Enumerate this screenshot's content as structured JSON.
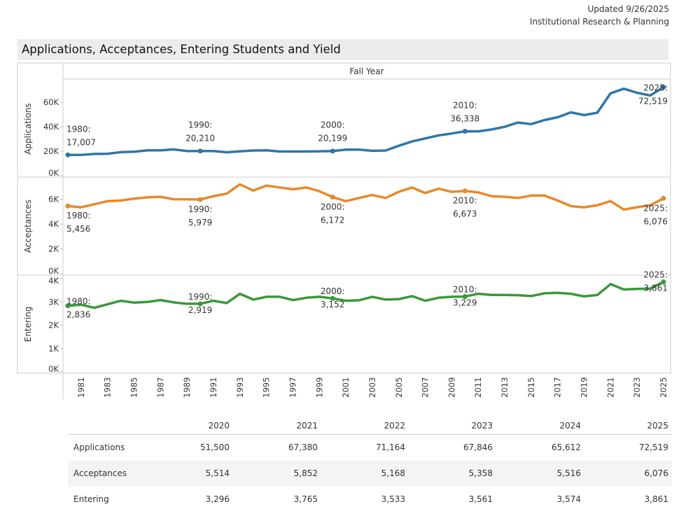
{
  "header": {
    "updated": "Updated 9/26/2025",
    "org": "Institutional Research & Planning"
  },
  "title": "Applications, Acceptances, Entering Students and Yield",
  "chart_data": {
    "type": "line",
    "column_header": "Fall Year",
    "x": [
      1980,
      1981,
      1982,
      1983,
      1984,
      1985,
      1986,
      1987,
      1988,
      1989,
      1990,
      1991,
      1992,
      1993,
      1994,
      1995,
      1996,
      1997,
      1998,
      1999,
      2000,
      2001,
      2002,
      2003,
      2004,
      2005,
      2006,
      2007,
      2008,
      2009,
      2010,
      2011,
      2012,
      2013,
      2014,
      2015,
      2016,
      2017,
      2018,
      2019,
      2020,
      2021,
      2022,
      2023,
      2024,
      2025
    ],
    "x_tick_labels": [
      "1981",
      "1983",
      "1985",
      "1987",
      "1989",
      "1991",
      "1993",
      "1995",
      "1997",
      "1999",
      "2001",
      "2003",
      "2005",
      "2007",
      "2009",
      "2011",
      "2013",
      "2015",
      "2017",
      "2019",
      "2021",
      "2023",
      "2025"
    ],
    "panels": [
      {
        "name": "Applications",
        "color": "#2f77a8",
        "ylim": [
          0,
          75000
        ],
        "ticks": [
          {
            "v": 0,
            "label": "0K"
          },
          {
            "v": 20000,
            "label": "20K"
          },
          {
            "v": 40000,
            "label": "40K"
          },
          {
            "v": 60000,
            "label": "60K"
          }
        ],
        "values": [
          17007,
          17000,
          17800,
          18000,
          19300,
          19600,
          20800,
          20800,
          21500,
          20200,
          20210,
          20200,
          19200,
          20000,
          20600,
          20800,
          19800,
          19800,
          19800,
          20000,
          20199,
          21300,
          21300,
          20400,
          20600,
          24500,
          28000,
          30500,
          33000,
          34500,
          36338,
          36300,
          37800,
          40000,
          43500,
          42200,
          45500,
          47800,
          51800,
          49600,
          51500,
          67380,
          71164,
          67846,
          65612,
          72519
        ],
        "annotations": [
          {
            "year": 1980,
            "label": "1980:",
            "value": "17,007"
          },
          {
            "year": 1990,
            "label": "1990:",
            "value": "20,210"
          },
          {
            "year": 2000,
            "label": "2000:",
            "value": "20,199"
          },
          {
            "year": 2010,
            "label": "2010:",
            "value": "36,338"
          },
          {
            "year": 2025,
            "label": "2025:",
            "value": "72,519"
          }
        ]
      },
      {
        "name": "Acceptances",
        "color": "#e8892b",
        "ylim": [
          0,
          7500
        ],
        "ticks": [
          {
            "v": 0,
            "label": "0K"
          },
          {
            "v": 2000,
            "label": "2K"
          },
          {
            "v": 4000,
            "label": "4K"
          },
          {
            "v": 6000,
            "label": "6K"
          }
        ],
        "values": [
          5456,
          5350,
          5600,
          5850,
          5900,
          6050,
          6150,
          6200,
          6000,
          6000,
          5979,
          6250,
          6450,
          7200,
          6700,
          7100,
          6950,
          6800,
          6950,
          6650,
          6172,
          5850,
          6100,
          6350,
          6100,
          6600,
          6950,
          6500,
          6850,
          6600,
          6673,
          6550,
          6250,
          6200,
          6100,
          6300,
          6300,
          5900,
          5450,
          5350,
          5514,
          5852,
          5168,
          5358,
          5516,
          6076
        ],
        "annotations": [
          {
            "year": 1980,
            "label": "1980:",
            "value": "5,456"
          },
          {
            "year": 1990,
            "label": "1990:",
            "value": "5,979"
          },
          {
            "year": 2000,
            "label": "2000:",
            "value": "6,172"
          },
          {
            "year": 2010,
            "label": "2010:",
            "value": "6,673"
          },
          {
            "year": 2025,
            "label": "2025:",
            "value": "6,076"
          }
        ]
      },
      {
        "name": "Entering",
        "color": "#3a983a",
        "ylim": [
          0,
          4000
        ],
        "ticks": [
          {
            "v": 0,
            "label": "0K"
          },
          {
            "v": 1000,
            "label": "1K"
          },
          {
            "v": 2000,
            "label": "2K"
          },
          {
            "v": 3000,
            "label": "3K"
          },
          {
            "v": 4000,
            "label": "4K"
          }
        ],
        "values": [
          2836,
          2880,
          2750,
          2900,
          3050,
          2970,
          3000,
          3080,
          2980,
          2920,
          2919,
          3050,
          2950,
          3350,
          3100,
          3220,
          3220,
          3080,
          3180,
          3220,
          3152,
          3050,
          3070,
          3220,
          3100,
          3120,
          3250,
          3050,
          3180,
          3220,
          3229,
          3350,
          3300,
          3300,
          3290,
          3250,
          3370,
          3390,
          3350,
          3240,
          3296,
          3765,
          3533,
          3561,
          3574,
          3861
        ],
        "annotations": [
          {
            "year": 1980,
            "label": "1980:",
            "value": "2,836"
          },
          {
            "year": 1990,
            "label": "1990:",
            "value": "2,919"
          },
          {
            "year": 2000,
            "label": "2000:",
            "value": "3,152"
          },
          {
            "year": 2010,
            "label": "2010:",
            "value": "3,229"
          },
          {
            "year": 2025,
            "label": "2025:",
            "value": "3,861"
          }
        ]
      }
    ]
  },
  "table": {
    "columns": [
      "2020",
      "2021",
      "2022",
      "2023",
      "2024",
      "2025"
    ],
    "rows": [
      {
        "label": "Applications",
        "values": [
          "51,500",
          "67,380",
          "71,164",
          "67,846",
          "65,612",
          "72,519"
        ]
      },
      {
        "label": "Acceptances",
        "values": [
          "5,514",
          "5,852",
          "5,168",
          "5,358",
          "5,516",
          "6,076"
        ]
      },
      {
        "label": "Entering",
        "values": [
          "3,296",
          "3,765",
          "3,533",
          "3,561",
          "3,574",
          "3,861"
        ]
      }
    ]
  }
}
